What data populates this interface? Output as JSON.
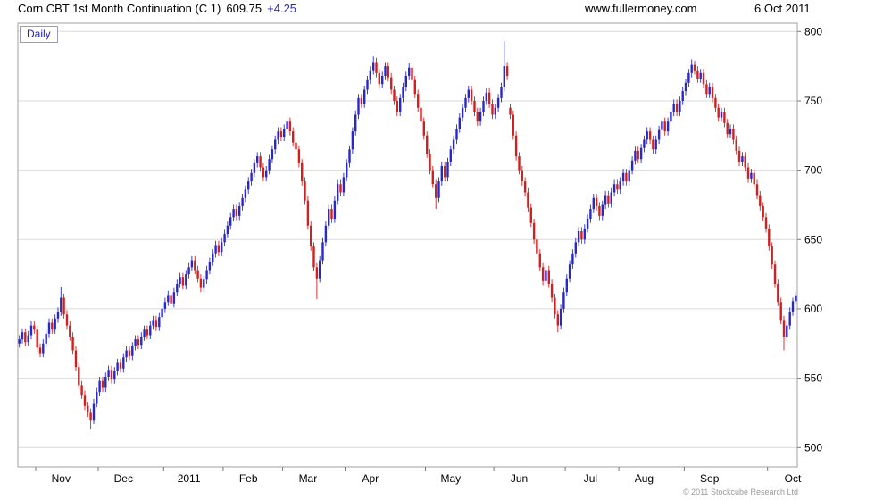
{
  "header": {
    "title": "Corn CBT 1st Month Continuation (C 1)",
    "price": "609.75",
    "change": "+4.25",
    "site": "www.fullermoney.com",
    "date": "6 Oct 2011"
  },
  "chart": {
    "interval": "Daily",
    "copyright": "© 2011 Stockcube Research Ltd"
  },
  "chart_data": {
    "type": "candlestick",
    "title": "Corn CBT 1st Month Continuation (C 1) 609.75 +4.25",
    "last_price": 609.75,
    "change": 4.25,
    "axis_side": "right",
    "grid": "horizontal-only",
    "ylim": [
      486,
      806
    ],
    "yticks": [
      500,
      550,
      600,
      650,
      700,
      750,
      800
    ],
    "colors": {
      "up": "#2828c8",
      "down": "#d02020",
      "grid": "#dadada",
      "frame": "#a0a0a0",
      "tick": "#777777",
      "label": "#000000"
    },
    "months": [
      {
        "label": "Nov",
        "i": 6
      },
      {
        "label": "Dec",
        "i": 27
      },
      {
        "label": "2011",
        "i": 49
      },
      {
        "label": "Feb",
        "i": 69
      },
      {
        "label": "Mar",
        "i": 89
      },
      {
        "label": "Apr",
        "i": 110
      },
      {
        "label": "May",
        "i": 137
      },
      {
        "label": "Jun",
        "i": 160
      },
      {
        "label": "Jul",
        "i": 184
      },
      {
        "label": "Aug",
        "i": 202
      },
      {
        "label": "Sep",
        "i": 224
      },
      {
        "label": "Oct",
        "i": 252
      }
    ],
    "ohlc": [
      [
        575,
        581,
        572,
        578
      ],
      [
        578,
        586,
        575,
        583
      ],
      [
        583,
        586,
        573,
        576
      ],
      [
        576,
        584,
        573,
        581
      ],
      [
        581,
        591,
        578,
        588
      ],
      [
        588,
        591,
        582,
        585
      ],
      [
        585,
        588,
        569,
        572
      ],
      [
        572,
        575,
        565,
        568
      ],
      [
        568,
        578,
        565,
        575
      ],
      [
        575,
        585,
        572,
        582
      ],
      [
        582,
        593,
        579,
        590
      ],
      [
        590,
        593,
        582,
        585
      ],
      [
        585,
        596,
        582,
        593
      ],
      [
        593,
        601,
        590,
        598
      ],
      [
        598,
        616,
        595,
        608
      ],
      [
        608,
        611,
        593,
        596
      ],
      [
        596,
        599,
        585,
        588
      ],
      [
        588,
        591,
        577,
        580
      ],
      [
        580,
        583,
        567,
        570
      ],
      [
        570,
        573,
        555,
        558
      ],
      [
        558,
        561,
        542,
        545
      ],
      [
        545,
        548,
        535,
        538
      ],
      [
        538,
        541,
        527,
        530
      ],
      [
        530,
        533,
        522,
        525
      ],
      [
        525,
        528,
        513,
        520
      ],
      [
        520,
        535,
        517,
        532
      ],
      [
        532,
        543,
        529,
        540
      ],
      [
        540,
        551,
        537,
        548
      ],
      [
        548,
        551,
        540,
        543
      ],
      [
        543,
        554,
        540,
        551
      ],
      [
        551,
        559,
        548,
        556
      ],
      [
        556,
        559,
        546,
        549
      ],
      [
        549,
        558,
        546,
        555
      ],
      [
        555,
        564,
        552,
        561
      ],
      [
        561,
        564,
        554,
        557
      ],
      [
        557,
        568,
        554,
        565
      ],
      [
        565,
        573,
        562,
        570
      ],
      [
        570,
        573,
        563,
        566
      ],
      [
        566,
        576,
        563,
        573
      ],
      [
        573,
        581,
        570,
        578
      ],
      [
        578,
        581,
        571,
        574
      ],
      [
        574,
        583,
        571,
        580
      ],
      [
        580,
        588,
        577,
        585
      ],
      [
        585,
        588,
        578,
        581
      ],
      [
        581,
        591,
        578,
        588
      ],
      [
        588,
        595,
        585,
        592
      ],
      [
        592,
        595,
        584,
        587
      ],
      [
        587,
        597,
        584,
        594
      ],
      [
        594,
        603,
        591,
        600
      ],
      [
        600,
        608,
        597,
        605
      ],
      [
        605,
        613,
        602,
        610
      ],
      [
        610,
        613,
        601,
        604
      ],
      [
        604,
        615,
        601,
        612
      ],
      [
        612,
        621,
        609,
        618
      ],
      [
        618,
        626,
        615,
        623
      ],
      [
        623,
        626,
        614,
        617
      ],
      [
        617,
        628,
        614,
        625
      ],
      [
        625,
        633,
        622,
        630
      ],
      [
        630,
        638,
        627,
        635
      ],
      [
        635,
        638,
        625,
        628
      ],
      [
        628,
        631,
        619,
        622
      ],
      [
        622,
        625,
        612,
        615
      ],
      [
        615,
        624,
        612,
        621
      ],
      [
        621,
        631,
        618,
        628
      ],
      [
        628,
        637,
        625,
        634
      ],
      [
        634,
        643,
        631,
        640
      ],
      [
        640,
        649,
        637,
        646
      ],
      [
        646,
        649,
        638,
        641
      ],
      [
        641,
        651,
        638,
        648
      ],
      [
        648,
        657,
        645,
        654
      ],
      [
        654,
        663,
        651,
        660
      ],
      [
        660,
        669,
        657,
        666
      ],
      [
        666,
        675,
        663,
        672
      ],
      [
        672,
        675,
        664,
        667
      ],
      [
        667,
        677,
        664,
        674
      ],
      [
        674,
        683,
        671,
        680
      ],
      [
        680,
        689,
        677,
        686
      ],
      [
        686,
        695,
        683,
        692
      ],
      [
        692,
        701,
        689,
        698
      ],
      [
        698,
        708,
        695,
        705
      ],
      [
        705,
        713,
        702,
        710
      ],
      [
        710,
        713,
        699,
        702
      ],
      [
        702,
        705,
        692,
        695
      ],
      [
        695,
        703,
        692,
        700
      ],
      [
        700,
        711,
        697,
        708
      ],
      [
        708,
        718,
        705,
        715
      ],
      [
        715,
        725,
        712,
        722
      ],
      [
        722,
        731,
        719,
        728
      ],
      [
        728,
        731,
        721,
        724
      ],
      [
        724,
        733,
        721,
        730
      ],
      [
        730,
        738,
        727,
        735
      ],
      [
        735,
        738,
        725,
        728
      ],
      [
        728,
        731,
        717,
        720
      ],
      [
        720,
        723,
        712,
        715
      ],
      [
        715,
        718,
        702,
        705
      ],
      [
        705,
        708,
        689,
        692
      ],
      [
        692,
        695,
        675,
        678
      ],
      [
        678,
        681,
        657,
        660
      ],
      [
        660,
        663,
        642,
        645
      ],
      [
        645,
        648,
        627,
        630
      ],
      [
        630,
        633,
        607,
        622
      ],
      [
        622,
        638,
        619,
        635
      ],
      [
        635,
        651,
        632,
        648
      ],
      [
        648,
        663,
        645,
        660
      ],
      [
        660,
        675,
        657,
        672
      ],
      [
        672,
        675,
        662,
        665
      ],
      [
        665,
        681,
        662,
        678
      ],
      [
        678,
        693,
        675,
        690
      ],
      [
        690,
        693,
        681,
        684
      ],
      [
        684,
        698,
        681,
        695
      ],
      [
        695,
        708,
        692,
        705
      ],
      [
        705,
        718,
        702,
        715
      ],
      [
        715,
        731,
        712,
        728
      ],
      [
        728,
        743,
        725,
        740
      ],
      [
        740,
        755,
        737,
        752
      ],
      [
        752,
        755,
        745,
        748
      ],
      [
        748,
        761,
        745,
        758
      ],
      [
        758,
        768,
        755,
        765
      ],
      [
        765,
        775,
        762,
        772
      ],
      [
        772,
        782,
        769,
        778
      ],
      [
        778,
        781,
        767,
        770
      ],
      [
        770,
        773,
        759,
        762
      ],
      [
        762,
        771,
        759,
        768
      ],
      [
        768,
        778,
        765,
        775
      ],
      [
        775,
        778,
        764,
        767
      ],
      [
        767,
        770,
        755,
        758
      ],
      [
        758,
        761,
        747,
        750
      ],
      [
        750,
        753,
        739,
        742
      ],
      [
        742,
        755,
        739,
        752
      ],
      [
        752,
        763,
        749,
        760
      ],
      [
        760,
        771,
        757,
        768
      ],
      [
        768,
        777,
        765,
        774
      ],
      [
        774,
        777,
        762,
        765
      ],
      [
        765,
        768,
        752,
        755
      ],
      [
        755,
        758,
        742,
        745
      ],
      [
        745,
        748,
        732,
        735
      ],
      [
        735,
        738,
        722,
        725
      ],
      [
        725,
        728,
        709,
        712
      ],
      [
        712,
        715,
        697,
        700
      ],
      [
        700,
        703,
        687,
        690
      ],
      [
        690,
        693,
        672,
        680
      ],
      [
        680,
        695,
        677,
        692
      ],
      [
        692,
        706,
        689,
        703
      ],
      [
        703,
        706,
        692,
        695
      ],
      [
        695,
        709,
        692,
        706
      ],
      [
        706,
        718,
        703,
        715
      ],
      [
        715,
        725,
        712,
        722
      ],
      [
        722,
        733,
        719,
        730
      ],
      [
        730,
        741,
        727,
        738
      ],
      [
        738,
        748,
        735,
        745
      ],
      [
        745,
        755,
        742,
        752
      ],
      [
        752,
        761,
        749,
        758
      ],
      [
        758,
        761,
        747,
        750
      ],
      [
        750,
        753,
        739,
        742
      ],
      [
        742,
        745,
        732,
        735
      ],
      [
        735,
        745,
        732,
        742
      ],
      [
        742,
        753,
        739,
        750
      ],
      [
        750,
        759,
        747,
        756
      ],
      [
        756,
        759,
        745,
        748
      ],
      [
        748,
        751,
        737,
        740
      ],
      [
        740,
        748,
        737,
        745
      ],
      [
        745,
        755,
        742,
        752
      ],
      [
        752,
        763,
        749,
        760
      ],
      [
        760,
        793,
        757,
        775
      ],
      [
        775,
        778,
        765,
        768
      ],
      [
        745,
        748,
        737,
        740
      ],
      [
        740,
        743,
        722,
        725
      ],
      [
        725,
        728,
        707,
        710
      ],
      [
        710,
        713,
        697,
        700
      ],
      [
        700,
        703,
        689,
        692
      ],
      [
        692,
        695,
        681,
        684
      ],
      [
        684,
        687,
        670,
        673
      ],
      [
        673,
        676,
        659,
        662
      ],
      [
        662,
        665,
        647,
        650
      ],
      [
        650,
        653,
        637,
        640
      ],
      [
        640,
        643,
        627,
        630
      ],
      [
        630,
        633,
        617,
        620
      ],
      [
        620,
        631,
        617,
        628
      ],
      [
        628,
        631,
        615,
        618
      ],
      [
        618,
        621,
        605,
        608
      ],
      [
        608,
        611,
        593,
        596
      ],
      [
        596,
        599,
        583,
        588
      ],
      [
        588,
        603,
        585,
        600
      ],
      [
        600,
        615,
        597,
        612
      ],
      [
        612,
        625,
        609,
        622
      ],
      [
        622,
        635,
        619,
        632
      ],
      [
        632,
        643,
        629,
        640
      ],
      [
        640,
        651,
        637,
        648
      ],
      [
        648,
        659,
        645,
        656
      ],
      [
        656,
        659,
        647,
        650
      ],
      [
        650,
        661,
        647,
        658
      ],
      [
        658,
        668,
        655,
        665
      ],
      [
        665,
        675,
        662,
        672
      ],
      [
        672,
        683,
        669,
        680
      ],
      [
        680,
        683,
        671,
        674
      ],
      [
        674,
        677,
        664,
        667
      ],
      [
        667,
        678,
        664,
        675
      ],
      [
        675,
        685,
        672,
        682
      ],
      [
        682,
        685,
        673,
        676
      ],
      [
        676,
        687,
        673,
        684
      ],
      [
        684,
        693,
        681,
        690
      ],
      [
        690,
        693,
        683,
        686
      ],
      [
        686,
        695,
        683,
        692
      ],
      [
        692,
        701,
        689,
        698
      ],
      [
        698,
        701,
        689,
        692
      ],
      [
        692,
        703,
        689,
        700
      ],
      [
        700,
        710,
        697,
        707
      ],
      [
        707,
        717,
        704,
        714
      ],
      [
        714,
        717,
        705,
        708
      ],
      [
        708,
        719,
        705,
        716
      ],
      [
        716,
        725,
        713,
        722
      ],
      [
        722,
        731,
        719,
        728
      ],
      [
        728,
        731,
        719,
        722
      ],
      [
        722,
        725,
        712,
        715
      ],
      [
        715,
        725,
        712,
        722
      ],
      [
        722,
        732,
        719,
        729
      ],
      [
        729,
        738,
        726,
        735
      ],
      [
        735,
        738,
        725,
        728
      ],
      [
        728,
        738,
        725,
        735
      ],
      [
        735,
        745,
        732,
        742
      ],
      [
        742,
        751,
        739,
        748
      ],
      [
        748,
        751,
        739,
        742
      ],
      [
        742,
        753,
        739,
        750
      ],
      [
        750,
        760,
        747,
        757
      ],
      [
        757,
        766,
        754,
        763
      ],
      [
        763,
        773,
        760,
        770
      ],
      [
        770,
        780,
        767,
        776
      ],
      [
        776,
        779,
        769,
        772
      ],
      [
        772,
        775,
        763,
        766
      ],
      [
        766,
        773,
        763,
        770
      ],
      [
        770,
        773,
        759,
        762
      ],
      [
        762,
        765,
        752,
        755
      ],
      [
        755,
        763,
        752,
        760
      ],
      [
        760,
        763,
        749,
        752
      ],
      [
        752,
        755,
        742,
        745
      ],
      [
        745,
        748,
        735,
        738
      ],
      [
        738,
        745,
        735,
        742
      ],
      [
        742,
        745,
        731,
        734
      ],
      [
        734,
        737,
        723,
        726
      ],
      [
        726,
        733,
        723,
        730
      ],
      [
        730,
        733,
        719,
        722
      ],
      [
        722,
        725,
        711,
        714
      ],
      [
        714,
        717,
        703,
        706
      ],
      [
        706,
        713,
        703,
        710
      ],
      [
        710,
        713,
        699,
        702
      ],
      [
        702,
        705,
        691,
        694
      ],
      [
        694,
        701,
        691,
        698
      ],
      [
        698,
        701,
        687,
        690
      ],
      [
        690,
        693,
        679,
        682
      ],
      [
        682,
        685,
        671,
        674
      ],
      [
        674,
        677,
        663,
        666
      ],
      [
        666,
        669,
        655,
        658
      ],
      [
        658,
        661,
        642,
        645
      ],
      [
        645,
        648,
        629,
        632
      ],
      [
        632,
        635,
        615,
        618
      ],
      [
        618,
        621,
        602,
        605
      ],
      [
        605,
        608,
        589,
        592
      ],
      [
        592,
        595,
        570,
        580
      ],
      [
        580,
        591,
        577,
        588
      ],
      [
        588,
        601,
        585,
        598
      ],
      [
        598,
        608,
        595,
        605.5
      ],
      [
        605.5,
        612,
        603,
        609.75
      ]
    ]
  }
}
